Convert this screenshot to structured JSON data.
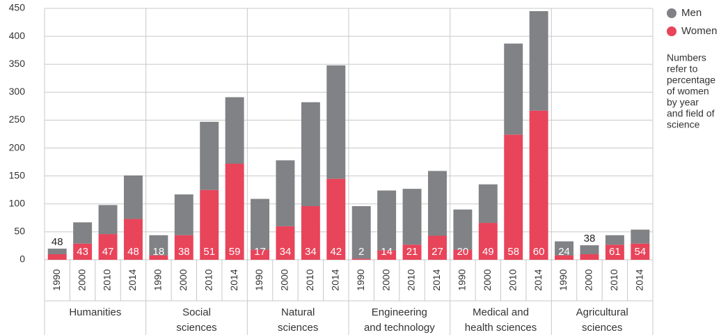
{
  "chart_data": {
    "type": "stacked_bar",
    "groups": [
      [
        "Humanities"
      ],
      [
        "Social",
        "sciences"
      ],
      [
        "Natural",
        "sciences"
      ],
      [
        "Engineering",
        "and technology"
      ],
      [
        "Medical and",
        "health sciences"
      ],
      [
        "Agricultural",
        "sciences"
      ]
    ],
    "categories": [
      "1990",
      "2000",
      "2010",
      "2014",
      "1990",
      "2000",
      "2010",
      "2014",
      "1990",
      "2000",
      "2010",
      "2014",
      "1990",
      "2000",
      "2010",
      "2014",
      "1990",
      "2000",
      "2010",
      "2014",
      "1990",
      "2000",
      "2010",
      "2014"
    ],
    "series": [
      {
        "name": "Men",
        "color": "#808285",
        "values": [
          10,
          38,
          52,
          78,
          36,
          73,
          122,
          119,
          91,
          118,
          186,
          203,
          94,
          107,
          100,
          116,
          72,
          69,
          163,
          178,
          25,
          16,
          17,
          25
        ]
      },
      {
        "name": "Women",
        "color": "#e8445a",
        "values": [
          10,
          29,
          46,
          73,
          8,
          44,
          125,
          172,
          18,
          60,
          96,
          145,
          2,
          17,
          27,
          43,
          18,
          66,
          224,
          267,
          8,
          10,
          27,
          29
        ]
      }
    ],
    "percent_women": [
      48,
      43,
      47,
      48,
      18,
      38,
      51,
      59,
      17,
      34,
      34,
      42,
      2,
      14,
      21,
      27,
      20,
      49,
      58,
      60,
      24,
      38,
      61,
      54
    ],
    "note": [
      "Numbers",
      "refer to",
      "percentage",
      "of women",
      "by year",
      "and field of",
      "science"
    ],
    "ylim": [
      0,
      450
    ],
    "yticks": [
      0,
      50,
      100,
      150,
      200,
      250,
      300,
      350,
      400,
      450
    ],
    "grid": true
  }
}
